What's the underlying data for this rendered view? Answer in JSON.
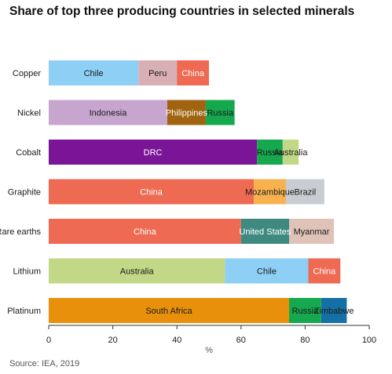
{
  "title": "Share of top three producing countries in selected minerals",
  "source": "Source: IEA, 2019",
  "chart_data": {
    "type": "bar",
    "orientation": "horizontal",
    "stacked": true,
    "title": "Share of top three producing countries in selected minerals",
    "xlabel": "%",
    "ylabel": "",
    "xlim": [
      0,
      100
    ],
    "xticks": [
      0,
      20,
      40,
      60,
      80,
      100
    ],
    "grid": false,
    "categories": [
      "Copper",
      "Nickel",
      "Cobalt",
      "Graphite",
      "Rare earths",
      "Lithium",
      "Platinum"
    ],
    "bars": [
      {
        "category": "Copper",
        "segments": [
          {
            "country": "Chile",
            "value": 28,
            "color": "#8ecff5",
            "label_color": "#1a1a1a"
          },
          {
            "country": "Peru",
            "value": 12,
            "color": "#d8b0b4",
            "label_color": "#1a1a1a"
          },
          {
            "country": "China",
            "value": 10,
            "color": "#ee6a52",
            "label_color": "#ffffff"
          }
        ]
      },
      {
        "category": "Nickel",
        "segments": [
          {
            "country": "Indonesia",
            "value": 37,
            "color": "#c6a6cf",
            "label_color": "#1a1a1a"
          },
          {
            "country": "Philippines",
            "value": 12,
            "color": "#a06410",
            "label_color": "#ffffff"
          },
          {
            "country": "Russia",
            "value": 9,
            "color": "#16a84e",
            "label_color": "#1a1a1a"
          }
        ]
      },
      {
        "category": "Cobalt",
        "segments": [
          {
            "country": "DRC",
            "value": 65,
            "color": "#7b1597",
            "label_color": "#ffffff"
          },
          {
            "country": "Russia",
            "value": 8,
            "color": "#16a84e",
            "label_color": "#1a1a1a"
          },
          {
            "country": "Australia",
            "value": 5,
            "color": "#c3d886",
            "label_color": "#1a1a1a"
          }
        ]
      },
      {
        "category": "Graphite",
        "segments": [
          {
            "country": "China",
            "value": 64,
            "color": "#ee6a52",
            "label_color": "#ffffff"
          },
          {
            "country": "Mozambique",
            "value": 10,
            "color": "#f7b24f",
            "label_color": "#1a1a1a"
          },
          {
            "country": "Brazil",
            "value": 12,
            "color": "#c9ccd1",
            "label_color": "#1a1a1a"
          }
        ]
      },
      {
        "category": "Rare earths",
        "segments": [
          {
            "country": "China",
            "value": 60,
            "color": "#ee6a52",
            "label_color": "#ffffff"
          },
          {
            "country": "United States",
            "value": 15,
            "color": "#3e8a80",
            "label_color": "#ffffff"
          },
          {
            "country": "Myanmar",
            "value": 14,
            "color": "#e0c3b8",
            "label_color": "#1a1a1a"
          }
        ]
      },
      {
        "category": "Lithium",
        "segments": [
          {
            "country": "Australia",
            "value": 55,
            "color": "#c3d886",
            "label_color": "#1a1a1a"
          },
          {
            "country": "Chile",
            "value": 26,
            "color": "#8ecff5",
            "label_color": "#1a1a1a"
          },
          {
            "country": "China",
            "value": 10,
            "color": "#ee6a52",
            "label_color": "#ffffff"
          }
        ]
      },
      {
        "category": "Platinum",
        "segments": [
          {
            "country": "South Africa",
            "value": 75,
            "color": "#e8900c",
            "label_color": "#1a1a1a"
          },
          {
            "country": "Russia",
            "value": 10,
            "color": "#16a84e",
            "label_color": "#1a1a1a"
          },
          {
            "country": "Zimbabwe",
            "value": 8,
            "color": "#1570a6",
            "label_color": "#1a1a1a"
          }
        ]
      }
    ]
  }
}
